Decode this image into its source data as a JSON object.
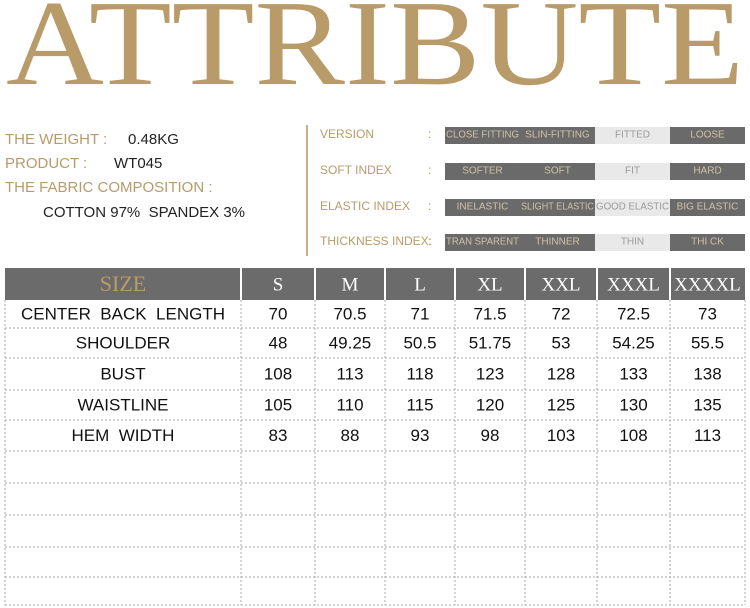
{
  "header": {
    "title": "ATTRIBUTE"
  },
  "info": [
    {
      "label": "THE WEIGHT :",
      "value": "0.48KG"
    },
    {
      "label": "PRODUCT :",
      "value": "WT045"
    },
    {
      "label": "THE FABRIC COMPOSITION :",
      "value": "COTTON 97%  SPANDEX 3%"
    }
  ],
  "separator": ":",
  "attributes": [
    {
      "label": "VERSION",
      "options": [
        "CLOSE FITTING",
        "SLIN-FITTING",
        "FITTED",
        "LOOSE"
      ],
      "selected": 2
    },
    {
      "label": "SOFT INDEX",
      "options": [
        "SOFTER",
        "SOFT",
        "FIT",
        "HARD"
      ],
      "selected": 2
    },
    {
      "label": "ELASTIC INDEX",
      "options": [
        "INELASTIC",
        "SLIGHT ELASTIC",
        "GOOD ELASTIC",
        "BIG ELASTIC"
      ],
      "selected": 2
    },
    {
      "label": "THICKNESS INDEX:",
      "options": [
        "TRAN SPARENT",
        "THINNER",
        "THIN",
        "THI CK"
      ],
      "selected": 2
    }
  ],
  "table": {
    "header": [
      "SIZE",
      "S",
      "M",
      "L",
      "XL",
      "XXL",
      "XXXL",
      "XXXXL"
    ],
    "rows": [
      [
        "CENTER  BACK  LENGTH",
        70,
        70.5,
        71,
        71.5,
        72,
        72.5,
        73
      ],
      [
        "SHOULDER",
        48,
        49.25,
        50.5,
        51.75,
        53,
        54.25,
        55.5
      ],
      [
        "BUST",
        108,
        113,
        118,
        123,
        128,
        133,
        138
      ],
      [
        "WAISTLINE",
        105,
        110,
        115,
        120,
        125,
        130,
        135
      ],
      [
        "HEM  WIDTH",
        83,
        88,
        93,
        98,
        103,
        108,
        113
      ]
    ]
  }
}
